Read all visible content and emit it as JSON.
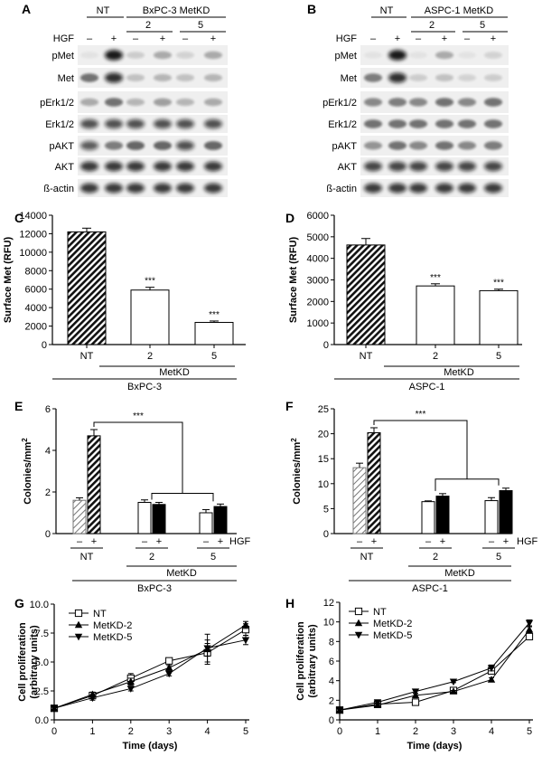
{
  "panels": {
    "A": {
      "letter": "A",
      "cell_line": "BxPC-3",
      "header_left": "NT",
      "header_right": "BxPC-3 MetKD",
      "clone_labels": [
        "2",
        "5"
      ],
      "hgf_label": "HGF",
      "hgf_signs": [
        "–",
        "+",
        "–",
        "+",
        "–",
        "+"
      ],
      "blot_labels": [
        "pMet",
        "Met",
        "pErk1/2",
        "Erk1/2",
        "pAKT",
        "AKT",
        "ß-actin"
      ]
    },
    "B": {
      "letter": "B",
      "cell_line": "ASPC-1",
      "header_left": "NT",
      "header_right": "ASPC-1 MetKD",
      "clone_labels": [
        "2",
        "5"
      ],
      "hgf_label": "HGF",
      "hgf_signs": [
        "–",
        "+",
        "–",
        "+",
        "–",
        "+"
      ],
      "blot_labels": [
        "pMet",
        "Met",
        "pErk1/2",
        "Erk1/2",
        "pAKT",
        "AKT",
        "ß-actin"
      ]
    }
  },
  "chart_data": [
    {
      "panel": "C",
      "type": "bar",
      "title": "",
      "ylabel": "Surface Met (RFU)",
      "ylim": [
        0,
        14000
      ],
      "yticks": [
        "0",
        "2000",
        "4000",
        "6000",
        "8000",
        "10000",
        "12000",
        "14000"
      ],
      "categories": [
        "NT",
        "2",
        "5"
      ],
      "values": [
        12200,
        5900,
        2400
      ],
      "errors": [
        400,
        300,
        150
      ],
      "significance": [
        "",
        "***",
        "***"
      ],
      "group_label": "MetKD",
      "cell_line": "BxPC-3"
    },
    {
      "panel": "D",
      "type": "bar",
      "title": "",
      "ylabel": "Surface Met (RFU)",
      "ylim": [
        0,
        6000
      ],
      "yticks": [
        "0",
        "1000",
        "2000",
        "3000",
        "4000",
        "5000",
        "6000"
      ],
      "categories": [
        "NT",
        "2",
        "5"
      ],
      "values": [
        4620,
        2720,
        2500
      ],
      "errors": [
        300,
        100,
        70
      ],
      "significance": [
        "",
        "***",
        "***"
      ],
      "group_label": "MetKD",
      "cell_line": "ASPC-1"
    },
    {
      "panel": "E",
      "type": "bar",
      "ylabel": "Colonies/mm",
      "ylabel_sup": "2",
      "ylim": [
        0,
        6
      ],
      "yticks": [
        "0",
        "2",
        "4",
        "6"
      ],
      "categories": [
        "NT",
        "2",
        "5"
      ],
      "hgf_signs": [
        "–",
        "+"
      ],
      "hgf_label": "HGF",
      "series": [
        {
          "name": "– HGF",
          "values": [
            1.6,
            1.5,
            1.0
          ],
          "errors": [
            0.12,
            0.12,
            0.15
          ]
        },
        {
          "name": "+ HGF",
          "values": [
            4.7,
            1.4,
            1.3
          ],
          "errors": [
            0.3,
            0.1,
            0.12
          ]
        }
      ],
      "significance": "***",
      "group_label": "MetKD",
      "cell_line": "BxPC-3"
    },
    {
      "panel": "F",
      "type": "bar",
      "ylabel": "Colonies/mm",
      "ylabel_sup": "2",
      "ylim": [
        0,
        25
      ],
      "yticks": [
        "0",
        "5",
        "10",
        "15",
        "20",
        "25"
      ],
      "categories": [
        "NT",
        "2",
        "5"
      ],
      "hgf_signs": [
        "–",
        "+"
      ],
      "hgf_label": "HGF",
      "series": [
        {
          "name": "– HGF",
          "values": [
            13.2,
            6.4,
            6.6
          ],
          "errors": [
            0.9,
            0.15,
            0.6
          ]
        },
        {
          "name": "+ HGF",
          "values": [
            20.2,
            7.5,
            8.6
          ],
          "errors": [
            1.0,
            0.5,
            0.5
          ]
        }
      ],
      "significance": "***",
      "group_label": "MetKD",
      "cell_line": "ASPC-1"
    },
    {
      "panel": "G",
      "type": "line",
      "xlabel": "Time (days)",
      "ylabel": "Cell proliferation",
      "ylabel2": "(arbitrary units)",
      "xlim": [
        0,
        5
      ],
      "ylim": [
        0,
        10
      ],
      "xticks": [
        "0",
        "1",
        "2",
        "3",
        "4",
        "5"
      ],
      "yticks": [
        "0.0",
        "2.5",
        "5.0",
        "7.5",
        "10.0"
      ],
      "x": [
        0,
        1,
        2,
        3,
        4,
        5
      ],
      "series": [
        {
          "name": "NT",
          "marker": "square",
          "values": [
            1.0,
            2.1,
            3.6,
            5.1,
            5.8,
            7.8
          ],
          "errors": [
            0.05,
            0.2,
            0.4,
            0.2,
            0.8,
            0.5
          ]
        },
        {
          "name": "MetKD-2",
          "marker": "triangle-up",
          "values": [
            1.0,
            2.2,
            3.3,
            4.5,
            6.1,
            8.2
          ],
          "errors": [
            0.05,
            0.2,
            0.3,
            0.2,
            1.3,
            0.3
          ]
        },
        {
          "name": "MetKD-5",
          "marker": "triangle-down",
          "values": [
            1.0,
            1.9,
            2.7,
            4.0,
            6.2,
            6.9
          ],
          "errors": [
            0.05,
            0.2,
            0.2,
            0.2,
            0.7,
            0.4
          ]
        }
      ]
    },
    {
      "panel": "H",
      "type": "line",
      "xlabel": "Time (days)",
      "ylabel": "Cell proliferation",
      "ylabel2": "(arbitrary units)",
      "xlim": [
        0,
        5
      ],
      "ylim": [
        0,
        12
      ],
      "xticks": [
        "0",
        "1",
        "2",
        "3",
        "4",
        "5"
      ],
      "yticks": [
        "0",
        "2",
        "4",
        "6",
        "8",
        "10",
        "12"
      ],
      "x": [
        0,
        1,
        2,
        3,
        4,
        5
      ],
      "series": [
        {
          "name": "NT",
          "marker": "square",
          "values": [
            1.0,
            1.6,
            1.8,
            3.0,
            5.0,
            8.5
          ],
          "errors": [
            0.05,
            0.1,
            0.1,
            0.1,
            0.3,
            0.3
          ]
        },
        {
          "name": "MetKD-2",
          "marker": "triangle-up",
          "values": [
            1.0,
            1.5,
            2.5,
            2.9,
            4.1,
            9.2
          ],
          "errors": [
            0.05,
            0.1,
            0.2,
            0.1,
            0.2,
            0.3
          ]
        },
        {
          "name": "MetKD-5",
          "marker": "triangle-down",
          "values": [
            1.0,
            1.8,
            2.9,
            3.9,
            5.3,
            9.9
          ],
          "errors": [
            0.05,
            0.1,
            0.2,
            0.1,
            0.3,
            0.3
          ]
        }
      ]
    }
  ]
}
